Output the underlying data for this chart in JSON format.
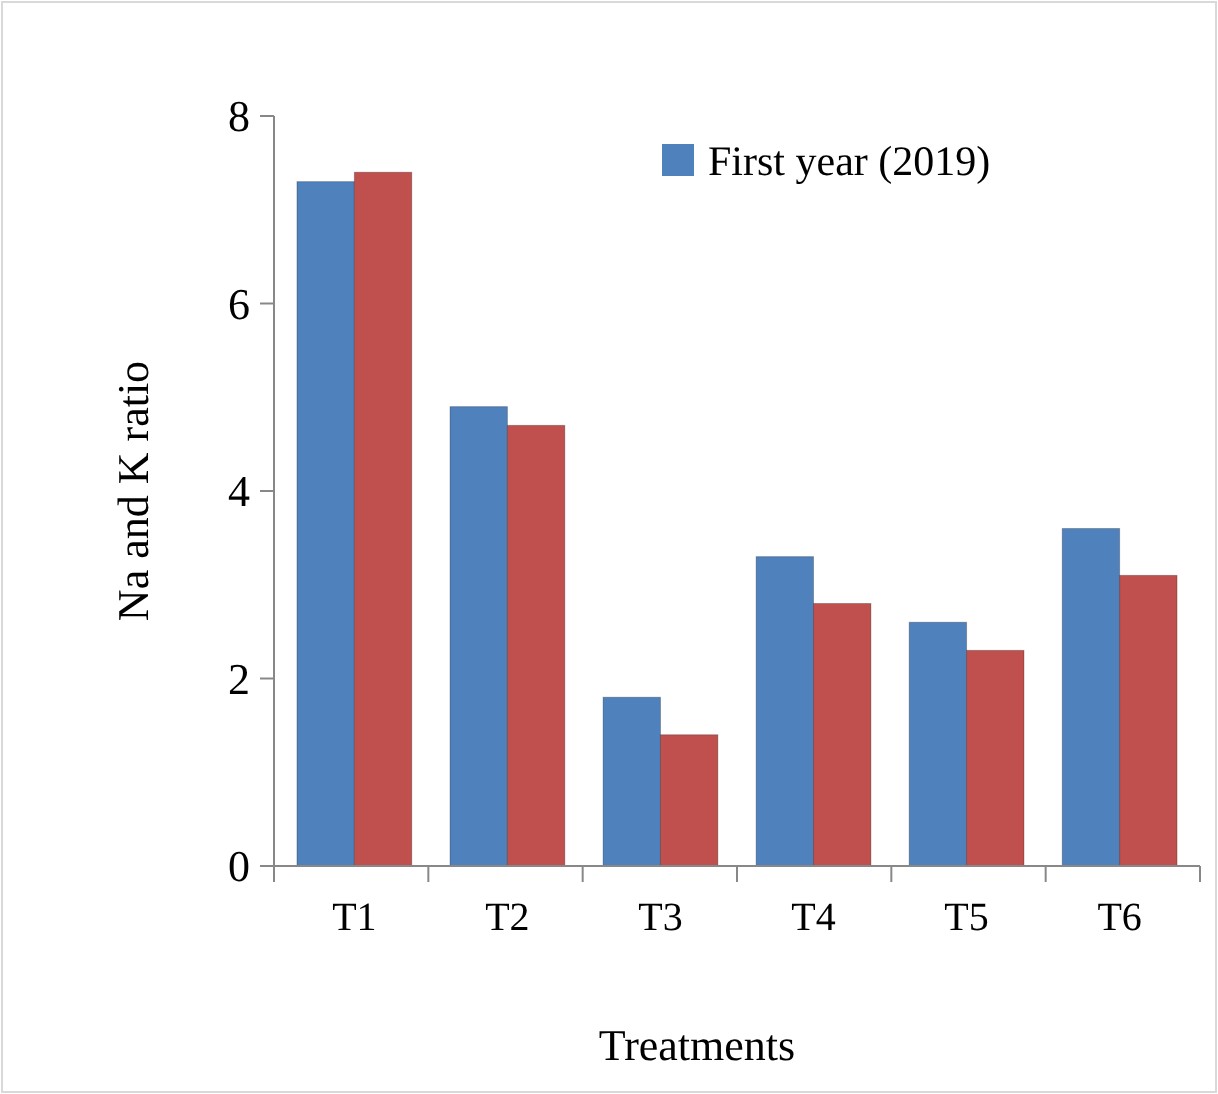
{
  "chart_data": {
    "type": "bar",
    "xlabel": "Treatments",
    "ylabel": "Na and K ratio",
    "categories": [
      "T1",
      "T2",
      "T3",
      "T4",
      "T5",
      "T6"
    ],
    "series": [
      {
        "name": "First year (2019)",
        "color": "#4f81bd",
        "values": [
          7.3,
          4.9,
          1.8,
          3.3,
          2.6,
          3.6
        ]
      },
      {
        "color": "#c0504d",
        "values": [
          7.4,
          4.7,
          1.4,
          2.8,
          2.3,
          3.1
        ]
      }
    ],
    "ylim": [
      0,
      8
    ],
    "yticks": [
      0,
      2,
      4,
      6,
      8
    ],
    "grid": false,
    "legend": "top right"
  }
}
